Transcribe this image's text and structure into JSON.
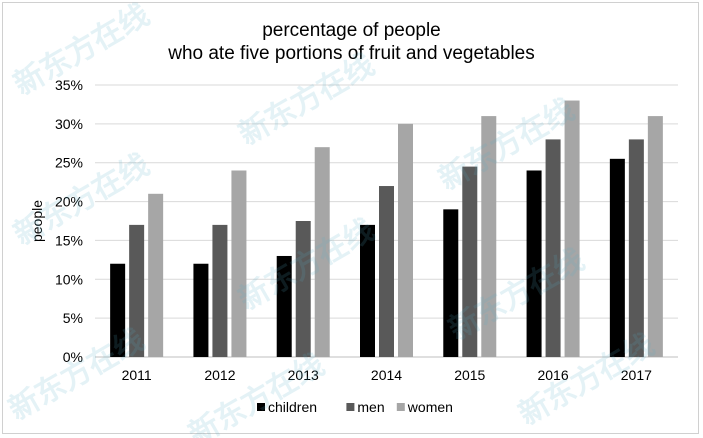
{
  "chart_data": {
    "type": "bar",
    "title": [
      "percentage of people",
      "who ate five portions of fruit and vegetables"
    ],
    "xlabel": "",
    "ylabel": "people",
    "categories": [
      "2011",
      "2012",
      "2013",
      "2014",
      "2015",
      "2016",
      "2017"
    ],
    "series": [
      {
        "name": "children",
        "color": "#000000",
        "values": [
          12,
          12,
          13,
          17,
          19,
          24,
          25.5
        ]
      },
      {
        "name": "men",
        "color": "#595959",
        "values": [
          17,
          17,
          17.5,
          22,
          24.5,
          28,
          28
        ]
      },
      {
        "name": "women",
        "color": "#a6a6a6",
        "values": [
          21,
          24,
          27,
          30,
          31,
          33,
          31
        ]
      }
    ],
    "ylim": [
      0,
      35
    ],
    "yticks": [
      "0%",
      "5%",
      "10%",
      "15%",
      "20%",
      "25%",
      "30%",
      "35%"
    ],
    "grid": true,
    "legend_position": "bottom"
  },
  "watermark": "新东方在线"
}
